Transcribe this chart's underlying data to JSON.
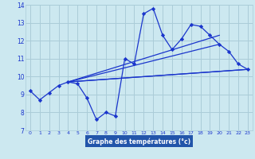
{
  "bg_color": "#cce8f0",
  "plot_bg_color": "#cce8f0",
  "grid_color": "#aaccd8",
  "line_color": "#1a35cc",
  "xlabel": "Graphe des températures (°c)",
  "xlabel_bg": "#2255aa",
  "xlabel_color": "#ffffff",
  "xlim": [
    -0.5,
    23.5
  ],
  "ylim": [
    7,
    14
  ],
  "yticks": [
    7,
    8,
    9,
    10,
    11,
    12,
    13,
    14
  ],
  "xticks": [
    0,
    1,
    2,
    3,
    4,
    5,
    6,
    7,
    8,
    9,
    10,
    11,
    12,
    13,
    14,
    15,
    16,
    17,
    18,
    19,
    20,
    21,
    22,
    23
  ],
  "series1_x": [
    0,
    1,
    2,
    3,
    4,
    5,
    6,
    7,
    8,
    9,
    10,
    11,
    12,
    13,
    14,
    15,
    16,
    17,
    18,
    19,
    20,
    21,
    22,
    23
  ],
  "series1_y": [
    9.2,
    8.7,
    9.1,
    9.5,
    9.7,
    9.6,
    8.8,
    7.6,
    8.0,
    7.8,
    11.0,
    10.7,
    13.5,
    13.8,
    12.3,
    11.5,
    12.1,
    12.9,
    12.8,
    12.3,
    11.8,
    11.4,
    10.7,
    10.4
  ],
  "trend_lines": [
    {
      "x": [
        4,
        23
      ],
      "y": [
        9.7,
        10.4
      ]
    },
    {
      "x": [
        4,
        23
      ],
      "y": [
        9.7,
        10.4
      ]
    },
    {
      "x": [
        4,
        20
      ],
      "y": [
        9.7,
        11.8
      ]
    },
    {
      "x": [
        4,
        20
      ],
      "y": [
        9.7,
        12.3
      ]
    }
  ]
}
